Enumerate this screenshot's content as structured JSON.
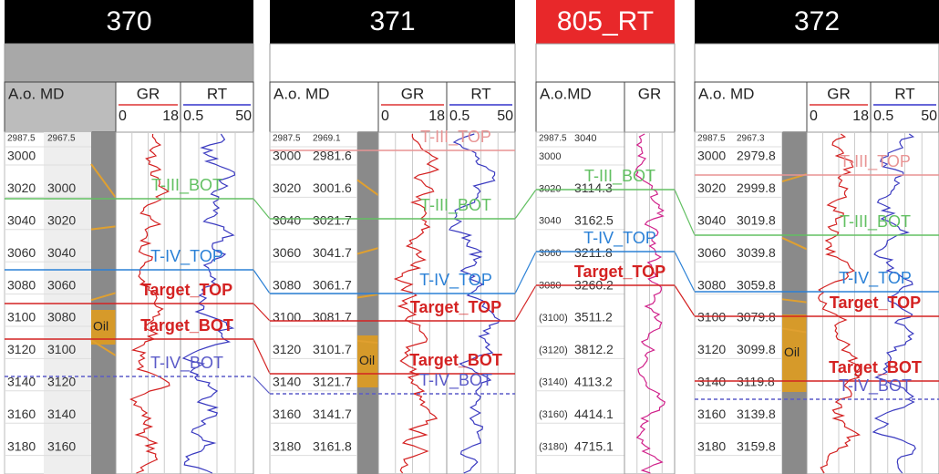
{
  "wells": [
    {
      "name": "370",
      "header_color": "#000000",
      "band_color": "#a8a8a8",
      "columns": {
        "depth": "A.o. MD",
        "curves": [
          {
            "name": "GR",
            "min": "0",
            "max": "18"
          },
          {
            "name": "RT",
            "min": "0.5",
            "max": "50"
          }
        ]
      },
      "depth_labels": [
        [
          "2987.5",
          "2967.5"
        ],
        [
          "3000"
        ],
        [
          "3020",
          "3000"
        ],
        [
          "3040",
          "3020"
        ],
        [
          "3060",
          "3040"
        ],
        [
          "3080",
          "3060"
        ],
        [
          "3100",
          "3080"
        ],
        [
          "3120",
          "3100"
        ],
        [
          "3140",
          "3120"
        ],
        [
          "3160",
          "3140"
        ],
        [
          "3180",
          "3160"
        ]
      ],
      "lith_label": "Oil",
      "markers": [
        {
          "label": "T-III_BOT",
          "color": "#62c062"
        },
        {
          "label": "T-IV_TOP",
          "color": "#2a80d6"
        },
        {
          "label": "Target_TOP",
          "color": "#d42222",
          "bold": true
        },
        {
          "label": "Target_BOT",
          "color": "#d42222",
          "bold": true
        },
        {
          "label": "T-IV_BOT",
          "color": "#5a5ac8"
        }
      ]
    },
    {
      "name": "371",
      "header_color": "#000000",
      "band_color": "#ffffff",
      "columns": {
        "depth": "A.o. MD",
        "curves": [
          {
            "name": "GR",
            "min": "0",
            "max": "18"
          },
          {
            "name": "RT",
            "min": "0.5",
            "max": "50"
          }
        ]
      },
      "depth_labels": [
        [
          "2987.5",
          "2969.1"
        ],
        [
          "3000",
          "2981.6"
        ],
        [
          "3020",
          "3001.6"
        ],
        [
          "3040",
          "3021.7"
        ],
        [
          "3060",
          "3041.7"
        ],
        [
          "3080",
          "3061.7"
        ],
        [
          "3100",
          "3081.7"
        ],
        [
          "3120",
          "3101.7"
        ],
        [
          "3140",
          "3121.7"
        ],
        [
          "3160",
          "3141.7"
        ],
        [
          "3180",
          "3161.8"
        ]
      ],
      "lith_label": "Oil",
      "markers": [
        {
          "label": "T-III_TOP",
          "color": "#e89494"
        },
        {
          "label": "T-III_BOT",
          "color": "#62c062"
        },
        {
          "label": "T-IV_TOP",
          "color": "#2a80d6"
        },
        {
          "label": "Target_TOP",
          "color": "#d42222",
          "bold": true
        },
        {
          "label": "Target_BOT",
          "color": "#d42222",
          "bold": true
        },
        {
          "label": "T-IV_BOT",
          "color": "#5a5ac8"
        }
      ]
    },
    {
      "name": "805_RT",
      "header_color": "#e8282a",
      "band_color": "#ffffff",
      "columns": {
        "depth": "A.o.MD",
        "curves": [
          {
            "name": "GR"
          }
        ]
      },
      "depth_labels": [
        [
          "2987.5",
          "3040"
        ],
        [
          "3000"
        ],
        [
          "3020",
          "3114.3"
        ],
        [
          "3040",
          "3162.5"
        ],
        [
          "3060",
          "3211.8"
        ],
        [
          "3080",
          "3260.2"
        ],
        [
          "(3100)",
          "3511.2"
        ],
        [
          "(3120)",
          "3812.2"
        ],
        [
          "(3140)",
          "4113.2"
        ],
        [
          "(3160)",
          "4414.1"
        ],
        [
          "(3180)",
          "4715.1"
        ]
      ],
      "markers": [
        {
          "label": "T-III_BOT",
          "color": "#62c062"
        },
        {
          "label": "T-IV_TOP",
          "color": "#2a80d6"
        },
        {
          "label": "Target_TOP",
          "color": "#d42222",
          "bold": true
        }
      ]
    },
    {
      "name": "372",
      "header_color": "#000000",
      "band_color": "#ffffff",
      "columns": {
        "depth": "A.o. MD",
        "curves": [
          {
            "name": "GR",
            "min": "0",
            "max": "18"
          },
          {
            "name": "RT",
            "min": "0.5",
            "max": "50"
          }
        ]
      },
      "depth_labels": [
        [
          "2987.5",
          "2967.3"
        ],
        [
          "3000",
          "2979.8"
        ],
        [
          "3020",
          "2999.8"
        ],
        [
          "3040",
          "3019.8"
        ],
        [
          "3060",
          "3039.8"
        ],
        [
          "3080",
          "3059.8"
        ],
        [
          "3100",
          "3079.8"
        ],
        [
          "3120",
          "3099.8"
        ],
        [
          "3140",
          "3119.8"
        ],
        [
          "3160",
          "3139.8"
        ],
        [
          "3180",
          "3159.8"
        ]
      ],
      "lith_label": "Oil",
      "markers": [
        {
          "label": "T-III_TOP",
          "color": "#e89494"
        },
        {
          "label": "T-III_BOT",
          "color": "#62c062"
        },
        {
          "label": "T-IV_TOP",
          "color": "#2a80d6"
        },
        {
          "label": "Target_TOP",
          "color": "#d42222",
          "bold": true
        },
        {
          "label": "Target_BOT",
          "color": "#d42222",
          "bold": true
        },
        {
          "label": "T-IV_BOT",
          "color": "#5a5ac8"
        }
      ]
    }
  ]
}
